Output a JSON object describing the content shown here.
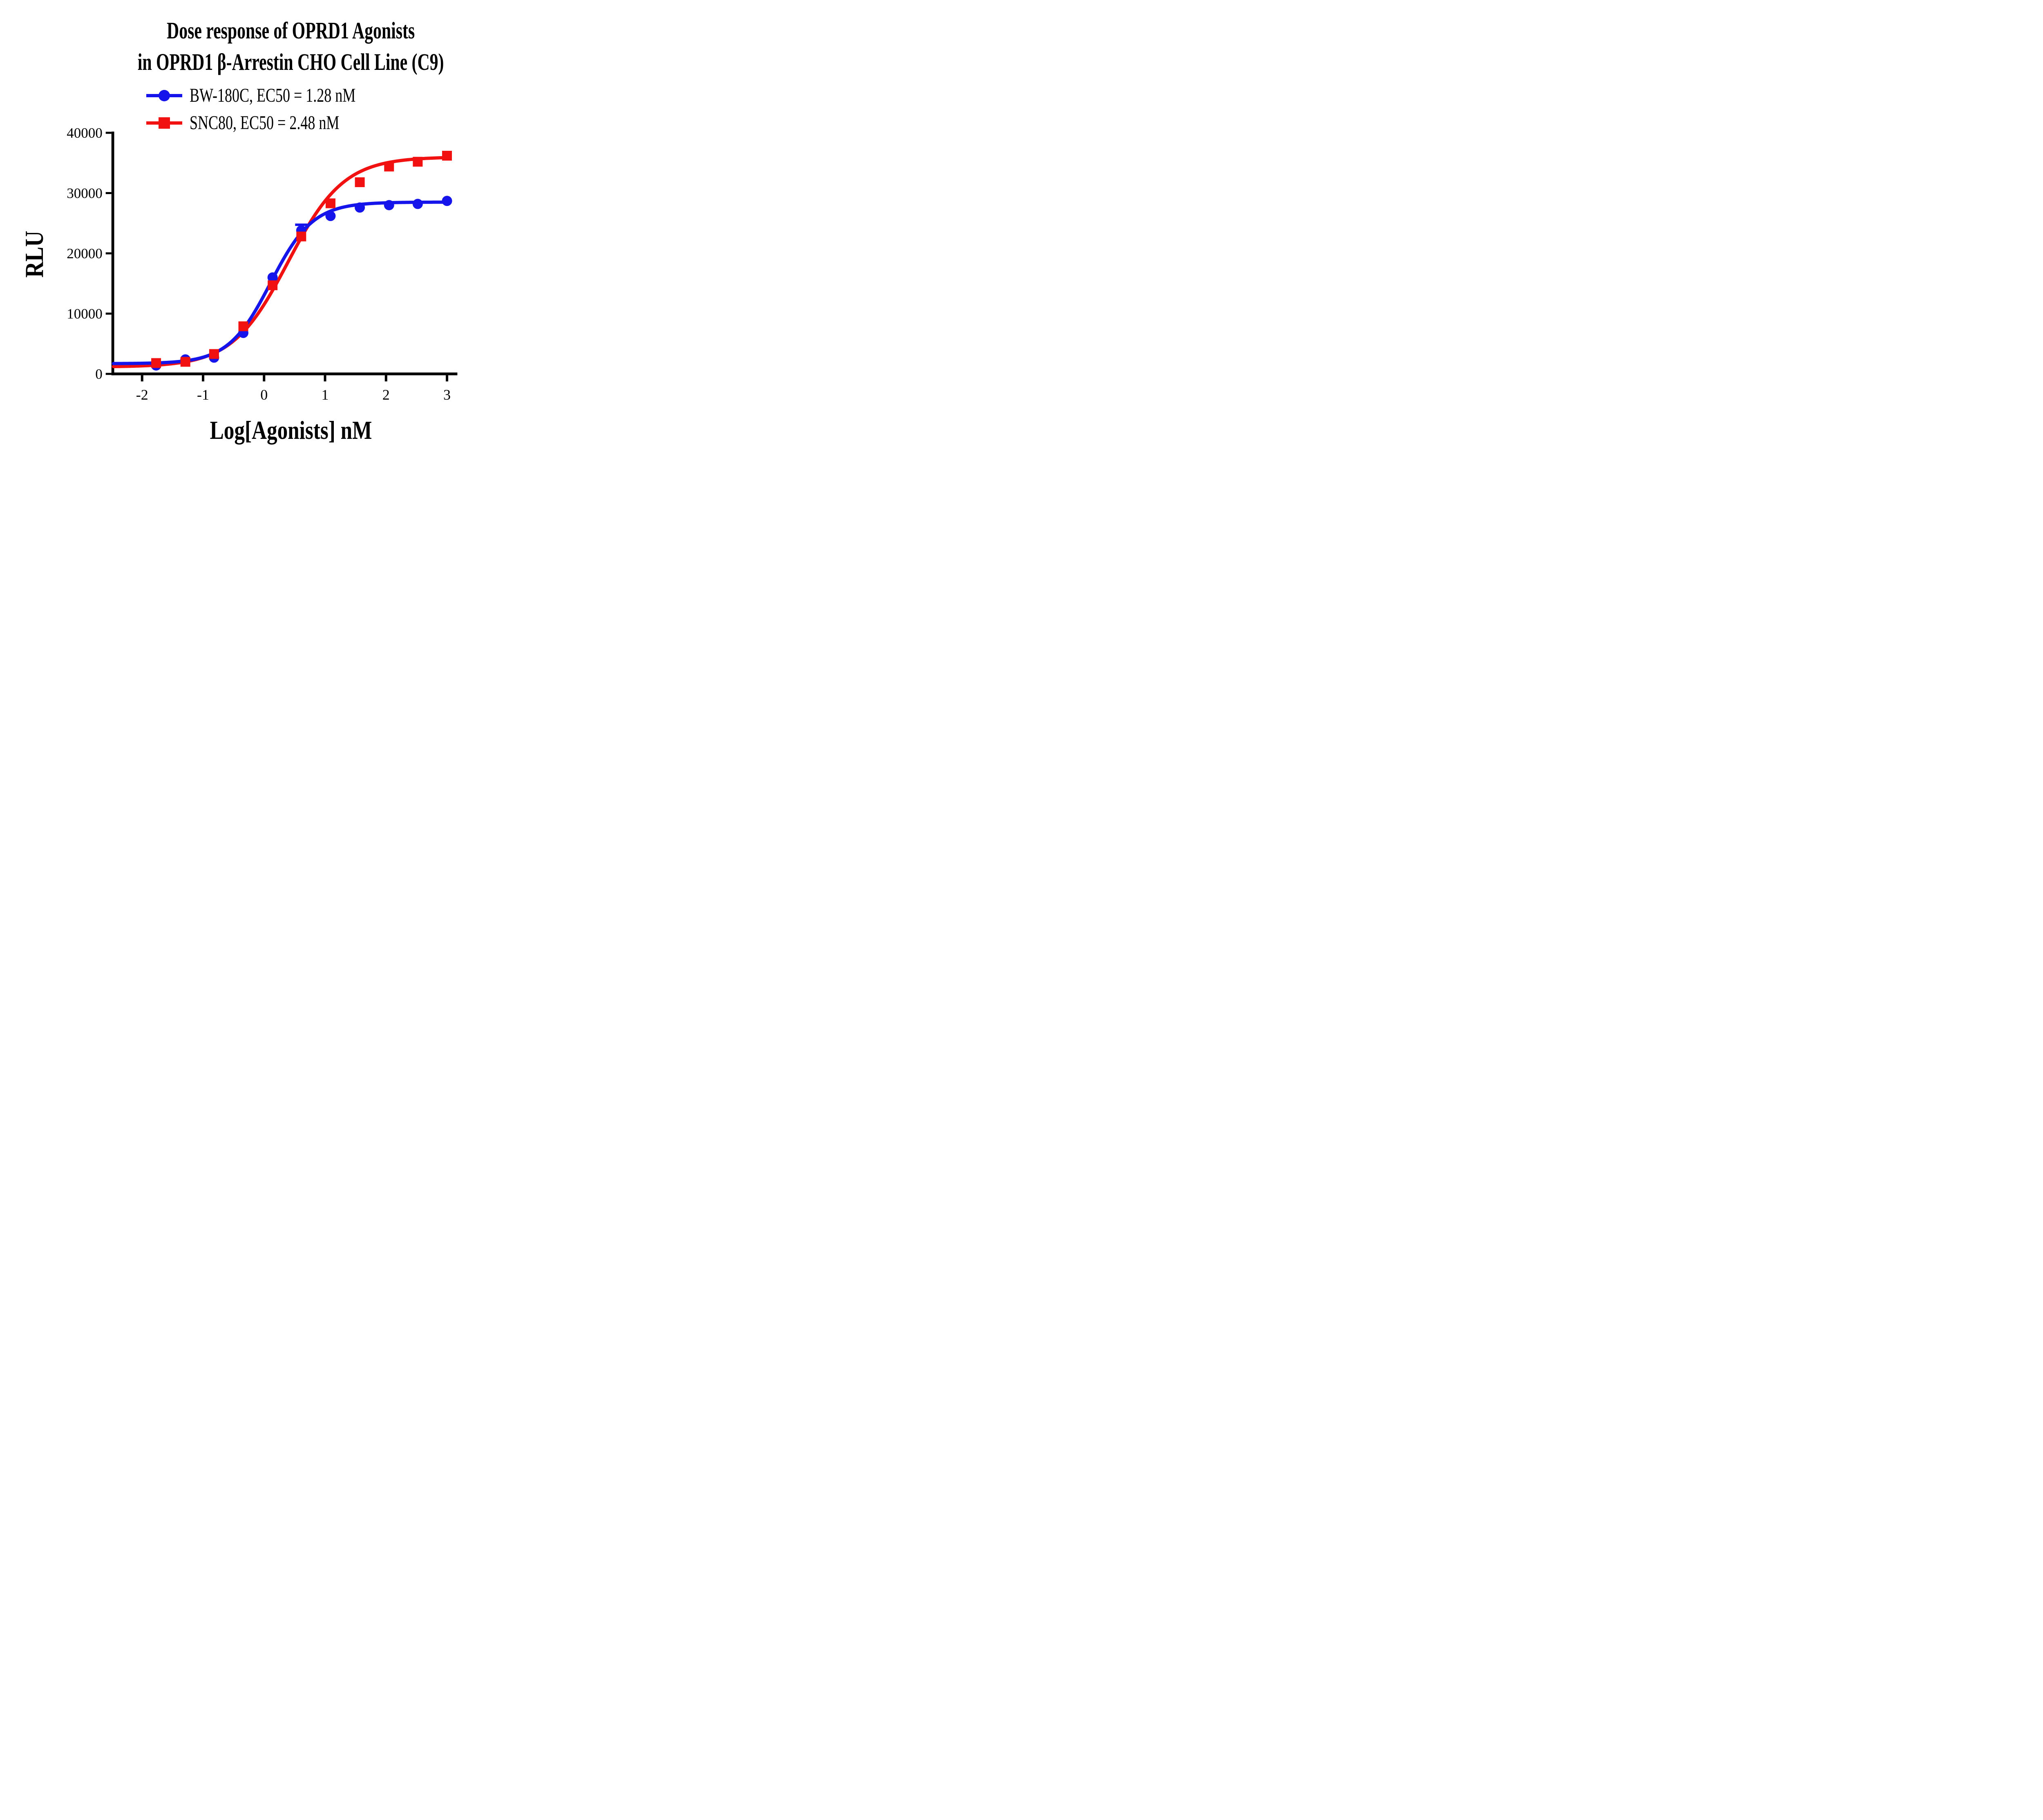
{
  "figure": {
    "title_line1": "Dose response of OPRD1 Agonists",
    "title_line2": "in OPRD1 β-Arrestin CHO Cell Line (C9)",
    "background_color": "#ffffff",
    "text_color": "#000000"
  },
  "legend": {
    "items": [
      {
        "label": "BW-180C, EC50 = 1.28 nM",
        "color": "#1515eb",
        "marker": "circle"
      },
      {
        "label": "SNC80, EC50 = 2.48 nM",
        "color": "#f21111",
        "marker": "square"
      }
    ]
  },
  "chart_data": {
    "type": "line",
    "title": "Dose response of OPRD1 Agonists in OPRD1 β-Arrestin CHO Cell Line (C9)",
    "xlabel": "Log[Agonists] nM",
    "ylabel": "RLU",
    "grid": false,
    "legend_position": "top-left",
    "x_axis": {
      "min": -2.48,
      "max": 3.17,
      "ticks": [
        -2,
        -1,
        0,
        1,
        2,
        3
      ]
    },
    "y_axis": {
      "min": 0,
      "max": 40000,
      "ticks": [
        0,
        10000,
        20000,
        30000,
        40000
      ]
    },
    "x": [
      -1.77,
      -1.29,
      -0.82,
      -0.34,
      0.14,
      0.61,
      1.09,
      1.57,
      2.05,
      2.52,
      3.0
    ],
    "series": [
      {
        "name": "BW-180C",
        "ec50_label": "EC50 = 1.28 nM",
        "color": "#1515eb",
        "marker": "circle",
        "values": [
          1400,
          2400,
          2700,
          6800,
          16000,
          23800,
          26200,
          27600,
          28000,
          28200,
          28700
        ],
        "error_bars": [
          {
            "x": 0.61,
            "y": 23800,
            "plus": 950
          }
        ],
        "fit": {
          "bottom": 1700,
          "top": 28500,
          "logec50": 0.107,
          "hill": 1.25,
          "x_start": -2.47,
          "x_end": 3.02
        }
      },
      {
        "name": "SNC80",
        "ec50_label": "EC50 = 2.48 nM",
        "color": "#f21111",
        "marker": "square",
        "values": [
          1800,
          2000,
          3300,
          7900,
          14700,
          22800,
          28300,
          31800,
          34400,
          35200,
          36200
        ],
        "error_bars": [],
        "fit": {
          "bottom": 1150,
          "top": 36000,
          "logec50": 0.394,
          "hill": 0.95,
          "x_start": -2.47,
          "x_end": 3.02
        }
      }
    ]
  }
}
